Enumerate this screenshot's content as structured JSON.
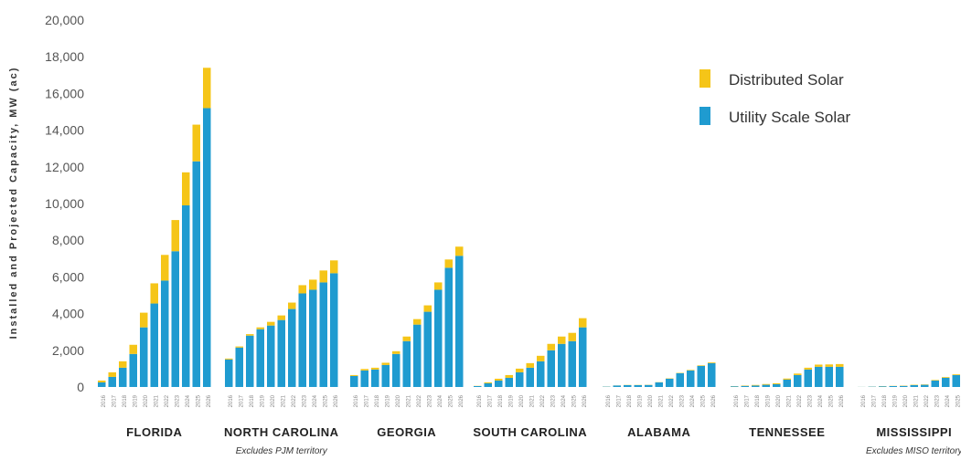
{
  "chart_data": {
    "type": "bar",
    "stacked": true,
    "ylabel": "Installed and Projected Capacity, MW (ac)",
    "ylim": [
      0,
      20000
    ],
    "yticks": [
      "0",
      "2,000",
      "4,000",
      "6,000",
      "8,000",
      "10,000",
      "12,000",
      "14,000",
      "16,000",
      "18,000",
      "20,000"
    ],
    "legend_position": "top-right",
    "colors": {
      "utility": "#1f9bd0",
      "distributed": "#f5c518"
    },
    "series_names": [
      "Distributed Solar",
      "Utility Scale Solar"
    ],
    "groups": [
      {
        "name": "FLORIDA",
        "note": "",
        "years": [
          "2016",
          "2017",
          "2018",
          "2019",
          "2020",
          "2021",
          "2022",
          "2023",
          "2024",
          "2025",
          "2026"
        ],
        "utility": [
          250,
          550,
          1050,
          1800,
          3250,
          4550,
          5800,
          7400,
          9900,
          12300,
          15200
        ],
        "distributed": [
          100,
          250,
          350,
          500,
          800,
          1100,
          1400,
          1700,
          1800,
          2000,
          2200
        ]
      },
      {
        "name": "NORTH CAROLINA",
        "note": "Excludes PJM territory",
        "years": [
          "2016",
          "2017",
          "2018",
          "2019",
          "2020",
          "2021",
          "2022",
          "2023",
          "2024",
          "2025",
          "2026"
        ],
        "utility": [
          1500,
          2150,
          2800,
          3150,
          3350,
          3650,
          4250,
          5100,
          5300,
          5700,
          6200
        ],
        "distributed": [
          50,
          60,
          80,
          100,
          200,
          250,
          350,
          450,
          550,
          650,
          700
        ]
      },
      {
        "name": "GEORGIA",
        "note": "",
        "years": [
          "2016",
          "2017",
          "2018",
          "2019",
          "2020",
          "2021",
          "2022",
          "2023",
          "2024",
          "2025",
          "2026"
        ],
        "utility": [
          600,
          900,
          950,
          1200,
          1800,
          2500,
          3400,
          4100,
          5300,
          6500,
          7150
        ],
        "distributed": [
          50,
          80,
          100,
          120,
          150,
          250,
          300,
          350,
          400,
          450,
          500
        ]
      },
      {
        "name": "SOUTH CAROLINA",
        "note": "",
        "years": [
          "2016",
          "2017",
          "2018",
          "2019",
          "2020",
          "2021",
          "2022",
          "2023",
          "2024",
          "2025",
          "2026"
        ],
        "utility": [
          50,
          200,
          350,
          500,
          800,
          1050,
          1400,
          2000,
          2350,
          2500,
          3250
        ],
        "distributed": [
          10,
          50,
          100,
          150,
          200,
          250,
          300,
          350,
          400,
          450,
          500
        ]
      },
      {
        "name": "ALABAMA",
        "note": "",
        "years": [
          "2016",
          "2017",
          "2018",
          "2019",
          "2020",
          "2021",
          "2022",
          "2023",
          "2024",
          "2025",
          "2026"
        ],
        "utility": [
          20,
          80,
          100,
          100,
          110,
          250,
          450,
          750,
          900,
          1150,
          1300
        ],
        "distributed": [
          5,
          5,
          10,
          10,
          10,
          10,
          20,
          20,
          30,
          30,
          40
        ]
      },
      {
        "name": "TENNESSEE",
        "note": "",
        "years": [
          "2016",
          "2017",
          "2018",
          "2019",
          "2020",
          "2021",
          "2022",
          "2023",
          "2024",
          "2025",
          "2026"
        ],
        "utility": [
          40,
          60,
          80,
          120,
          150,
          400,
          650,
          950,
          1100,
          1100,
          1100
        ],
        "distributed": [
          10,
          20,
          30,
          40,
          50,
          60,
          80,
          100,
          120,
          130,
          150
        ]
      },
      {
        "name": "MISSISSIPPI",
        "note": "Excludes MISO territory",
        "years": [
          "2016",
          "2017",
          "2018",
          "2019",
          "2020",
          "2021",
          "2022",
          "2023",
          "2024",
          "2025",
          "2026"
        ],
        "utility": [
          5,
          20,
          40,
          50,
          60,
          100,
          120,
          350,
          500,
          650,
          800
        ],
        "distributed": [
          2,
          5,
          10,
          10,
          15,
          20,
          20,
          30,
          40,
          40,
          50
        ]
      }
    ]
  }
}
